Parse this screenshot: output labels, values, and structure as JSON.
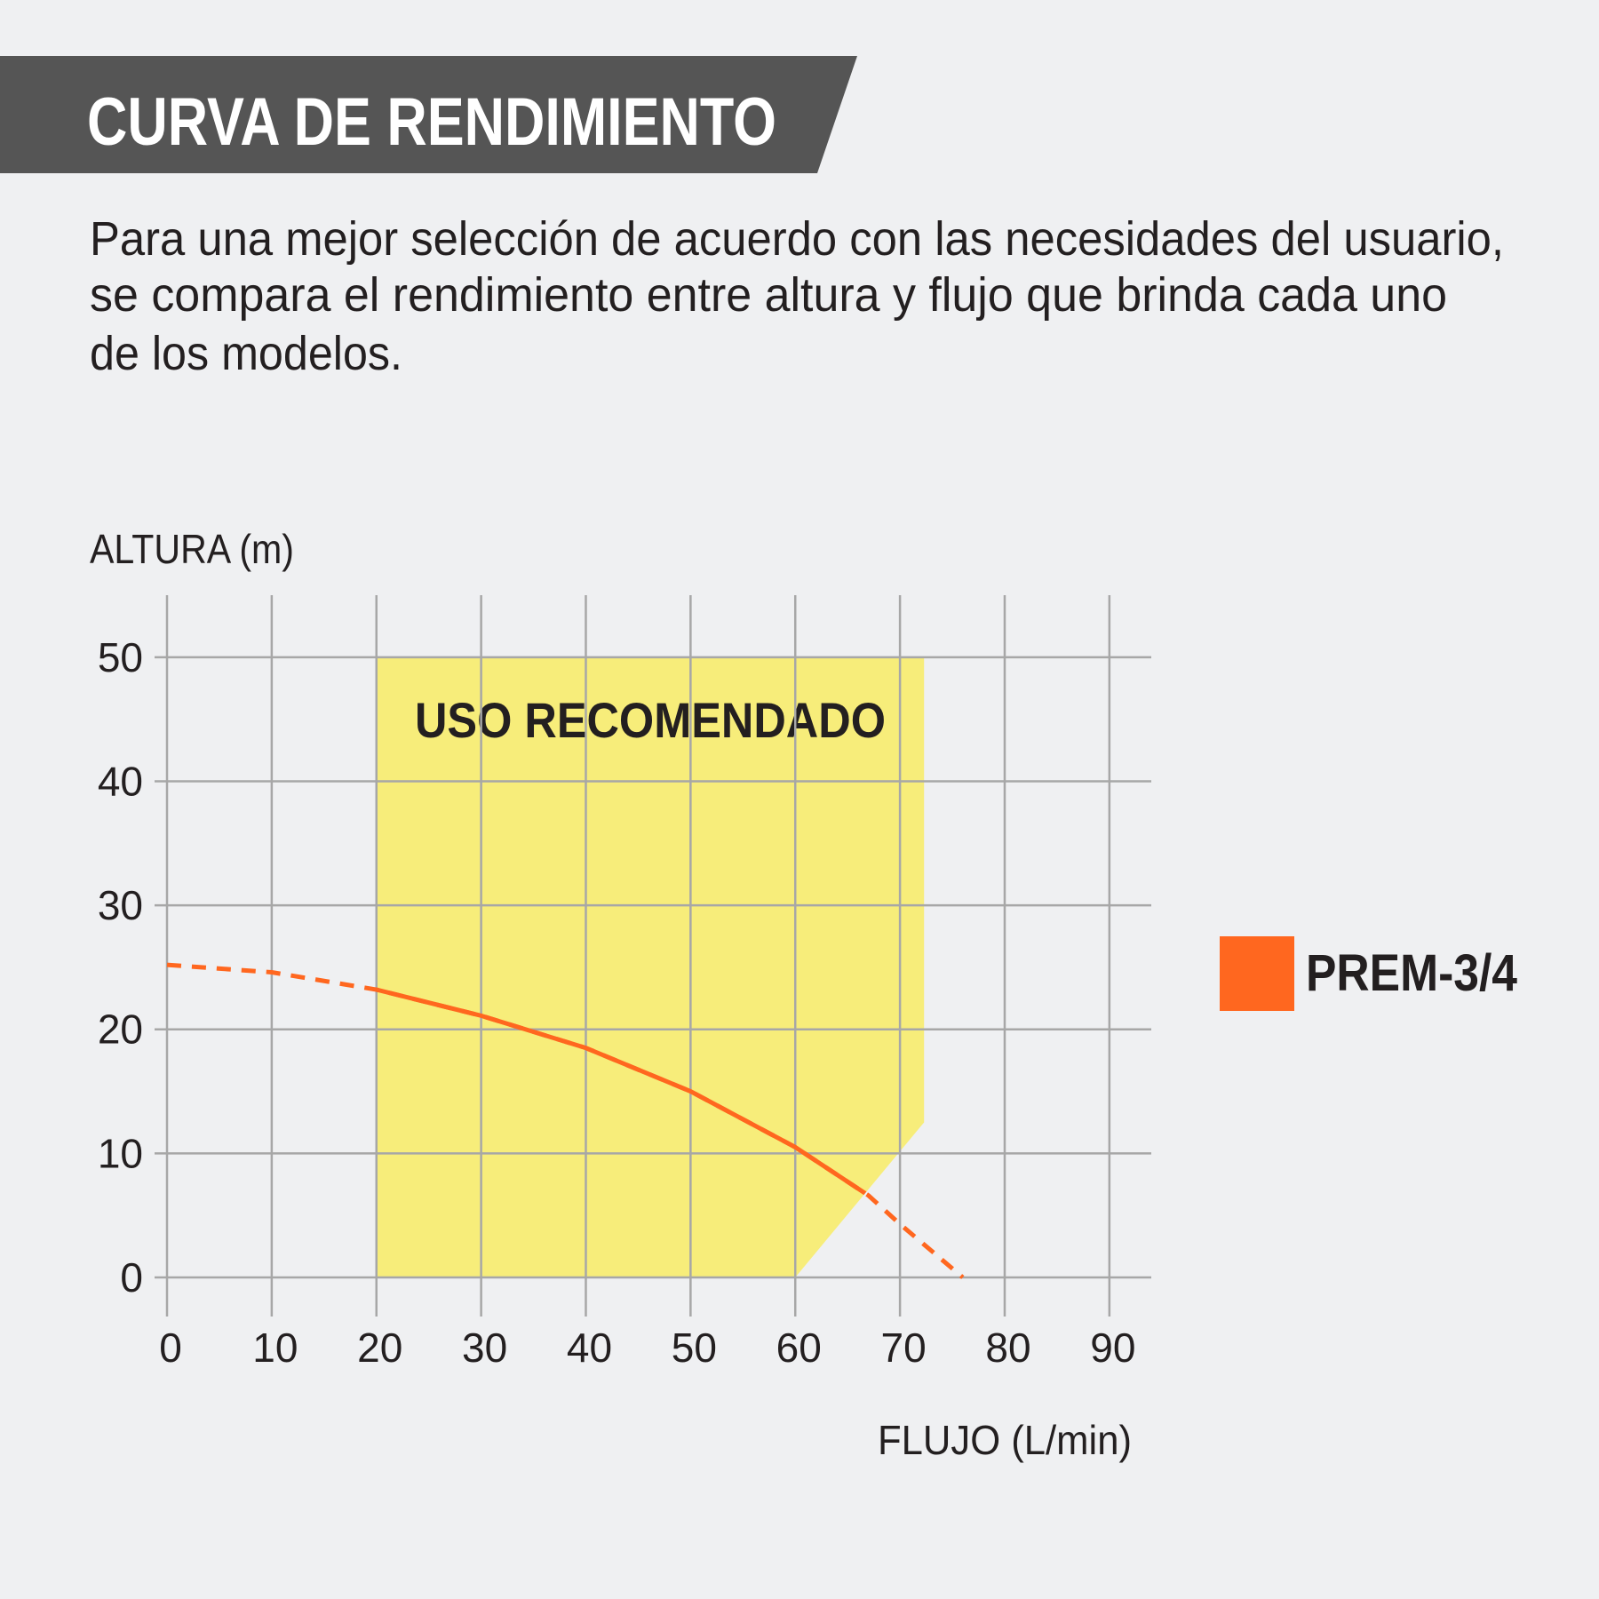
{
  "header": {
    "title": "CURVA DE RENDIMIENTO",
    "description": [
      "Para una mejor selección de acuerdo con las necesidades del usuario,",
      "se compara el rendimiento entre altura y flujo que brinda cada uno",
      "de los modelos."
    ]
  },
  "chart_data": {
    "type": "line",
    "y_label": "ALTURA (m)",
    "x_label": "FLUJO (L/min)",
    "x": [
      0,
      10,
      20,
      30,
      40,
      50,
      60,
      67,
      70,
      76
    ],
    "series": [
      {
        "name": "PREM-3/4",
        "color": "#ff671f",
        "values": [
          25.2,
          24.6,
          23.2,
          21.1,
          18.5,
          15,
          10.5,
          6.6,
          4.3,
          0
        ]
      }
    ],
    "region": {
      "label": "USO RECOMENDADO",
      "color": "#f7ed7a",
      "x": [
        20,
        20,
        72.3,
        72.3,
        60
      ],
      "y": [
        0,
        50,
        50,
        12.5,
        0
      ]
    },
    "dashed_outside_region": true,
    "xlim": [
      0,
      94
    ],
    "ylim": [
      0,
      55
    ],
    "xticks": [
      0,
      10,
      20,
      30,
      40,
      50,
      60,
      70,
      80,
      90
    ],
    "yticks": [
      0,
      10,
      20,
      30,
      40,
      50
    ],
    "grid": true,
    "legend": "right"
  }
}
